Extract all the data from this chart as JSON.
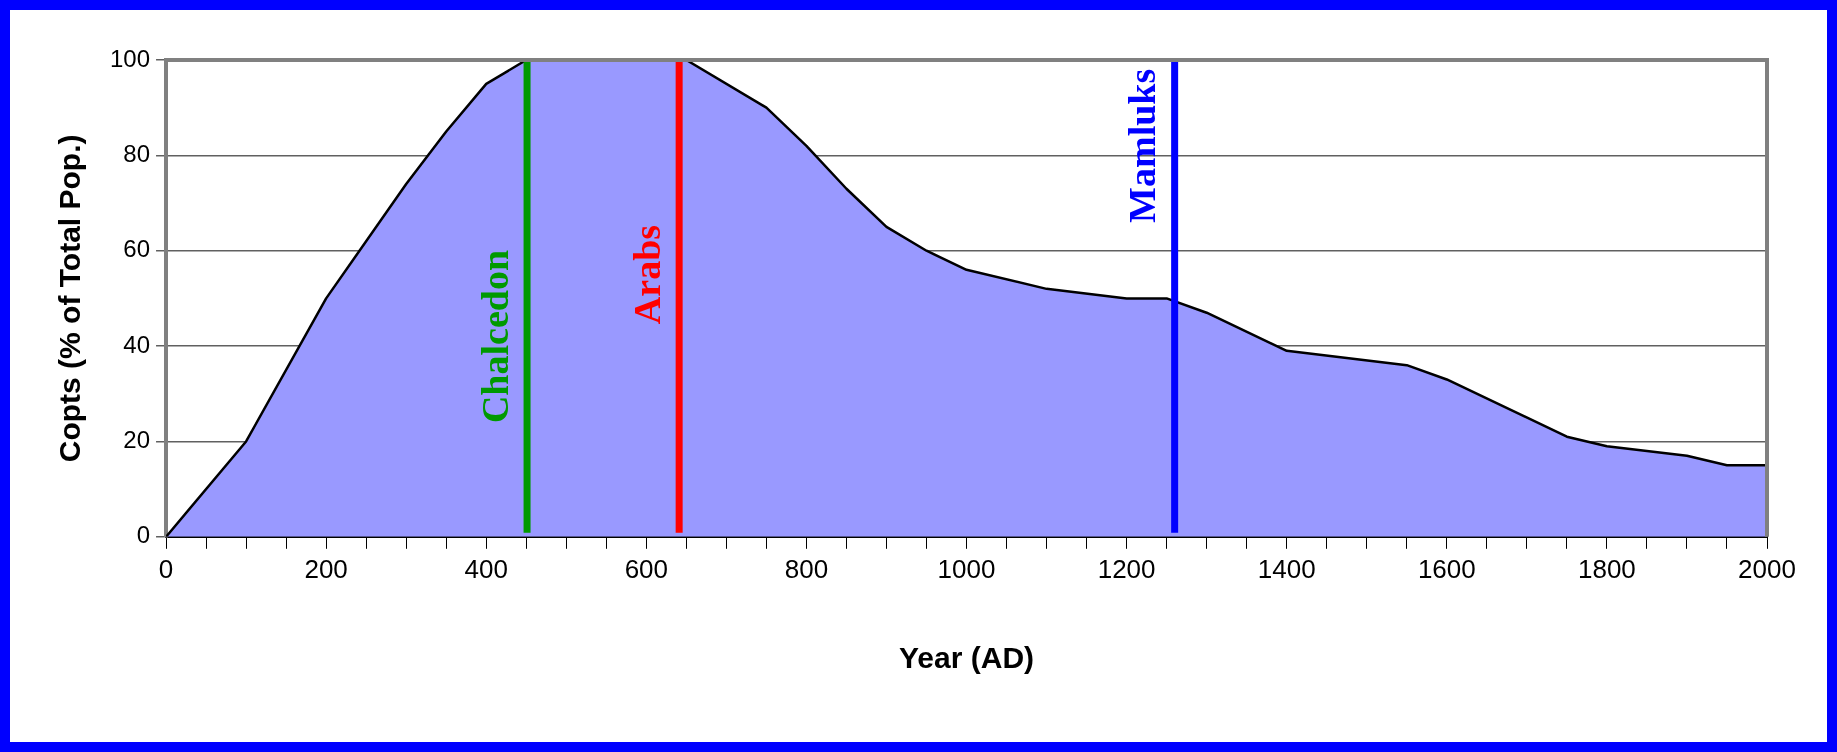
{
  "chart_data": {
    "type": "area",
    "xlabel": "Year (AD)",
    "ylabel": "Copts (% of Total Pop.)",
    "x": [
      0,
      100,
      200,
      300,
      350,
      400,
      450,
      500,
      550,
      600,
      650,
      750,
      800,
      850,
      900,
      950,
      1000,
      1100,
      1200,
      1250,
      1300,
      1400,
      1550,
      1600,
      1750,
      1800,
      1900,
      1950,
      2000
    ],
    "series": [
      {
        "color": "#9999ff",
        "values": [
          0,
          20,
          50,
          74,
          85,
          95,
          100,
          100,
          100,
          100,
          100,
          90,
          82,
          73,
          65,
          60,
          56,
          52,
          50,
          50,
          47,
          39,
          36,
          33,
          21,
          19,
          17,
          15,
          15
        ]
      }
    ],
    "xlim": [
      0,
      2000
    ],
    "xticks": [
      0,
      {
        "value": 50,
        "label": null
      },
      {
        "value": 100,
        "label": null
      },
      {
        "value": 150,
        "label": null
      },
      200,
      {
        "value": 250,
        "label": null
      },
      {
        "value": 300,
        "label": null
      },
      {
        "value": 350,
        "label": null
      },
      400,
      {
        "value": 450,
        "label": null
      },
      {
        "value": 500,
        "label": null
      },
      {
        "value": 550,
        "label": null
      },
      600,
      {
        "value": 650,
        "label": null
      },
      {
        "value": 700,
        "label": null
      },
      {
        "value": 750,
        "label": null
      },
      800,
      {
        "value": 850,
        "label": null
      },
      {
        "value": 900,
        "label": null
      },
      {
        "value": 950,
        "label": null
      },
      1000,
      {
        "value": 1050,
        "label": null
      },
      {
        "value": 1100,
        "label": null
      },
      {
        "value": 1150,
        "label": null
      },
      1200,
      {
        "value": 1250,
        "label": null
      },
      {
        "value": 1300,
        "label": null
      },
      {
        "value": 1350,
        "label": null
      },
      1400,
      {
        "value": 1450,
        "label": null
      },
      {
        "value": 1500,
        "label": null
      },
      {
        "value": 1550,
        "label": null
      },
      1600,
      {
        "value": 1650,
        "label": null
      },
      {
        "value": 1700,
        "label": null
      },
      {
        "value": 1750,
        "label": null
      },
      1800,
      {
        "value": 1850,
        "label": null
      },
      {
        "value": 1900,
        "label": null
      },
      {
        "value": 1950,
        "label": null
      },
      2000
    ],
    "ylim": [
      0,
      100
    ],
    "yticks": [
      0,
      20,
      40,
      60,
      80,
      100
    ],
    "grid": "y",
    "legend": false,
    "ref_lines": [
      {
        "axis": "x",
        "value": 451,
        "label": "Chalcedon",
        "color": "#009900"
      },
      {
        "axis": "x",
        "value": 641,
        "label": "Arabs",
        "color": "#ff0000"
      },
      {
        "axis": "x",
        "value": 1260,
        "label": "Mamluks",
        "color": "#0000ff"
      }
    ]
  }
}
